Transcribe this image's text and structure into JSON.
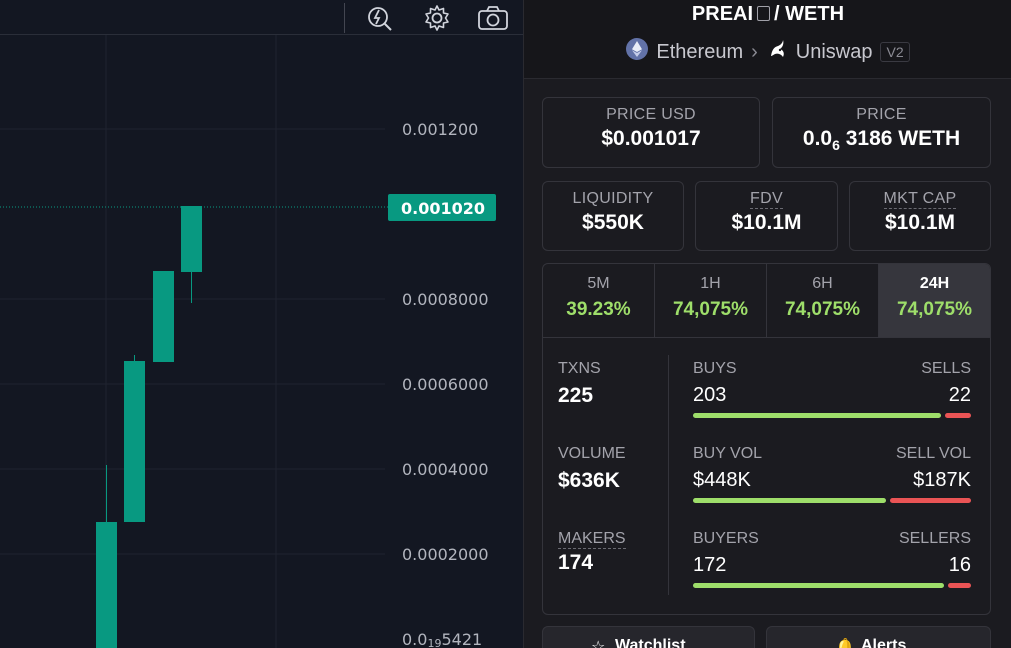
{
  "toolbar": {
    "icons": [
      "lightning-search-icon",
      "gear-icon",
      "camera-icon"
    ]
  },
  "chart": {
    "price_labels": [
      "0.001200",
      "0.0008000",
      "0.0006000",
      "0.0004000",
      "0.0002000"
    ],
    "bottom_label": {
      "main": "0.0",
      "sub": "19",
      "rest": "5421"
    },
    "current_price": "0.001020",
    "up_color": "#089981"
  },
  "pair": {
    "base": "PREAI",
    "sep": "/",
    "quote": "WETH",
    "chain": "Ethereum",
    "dex": "Uniswap",
    "version": "V2"
  },
  "price_usd": {
    "label": "PRICE USD",
    "value": "$0.001017"
  },
  "price_native": {
    "label": "PRICE",
    "prefix": "0.0",
    "sub": "6",
    "rest": "3186 WETH"
  },
  "liquidity": {
    "label": "LIQUIDITY",
    "value": "$550K"
  },
  "fdv": {
    "label": "FDV",
    "value": "$10.1M"
  },
  "mkt_cap": {
    "label": "MKT CAP",
    "value": "$10.1M"
  },
  "timeframes": [
    {
      "label": "5M",
      "value": "39.23%"
    },
    {
      "label": "1H",
      "value": "74,075%"
    },
    {
      "label": "6H",
      "value": "74,075%"
    },
    {
      "label": "24H",
      "value": "74,075%",
      "active": true
    }
  ],
  "stats": {
    "txns": {
      "label": "TXNS",
      "value": "225"
    },
    "volume": {
      "label": "VOLUME",
      "value": "$636K"
    },
    "makers": {
      "label": "MAKERS",
      "value": "174"
    },
    "buys": {
      "label": "BUYS",
      "value": "203",
      "share": 0.902
    },
    "sells": {
      "label": "SELLS",
      "value": "22"
    },
    "buy_vol": {
      "label": "BUY VOL",
      "value": "$448K",
      "share": 0.705
    },
    "sell_vol": {
      "label": "SELL VOL",
      "value": "$187K"
    },
    "buyers": {
      "label": "BUYERS",
      "value": "172",
      "share": 0.915
    },
    "sellers": {
      "label": "SELLERS",
      "value": "16"
    }
  },
  "colors": {
    "buy": "#9ede6a",
    "sell": "#ea5455",
    "candle_up": "#089981"
  },
  "buttons": {
    "watchlist": "Watchlist",
    "alerts": "Alerts"
  }
}
